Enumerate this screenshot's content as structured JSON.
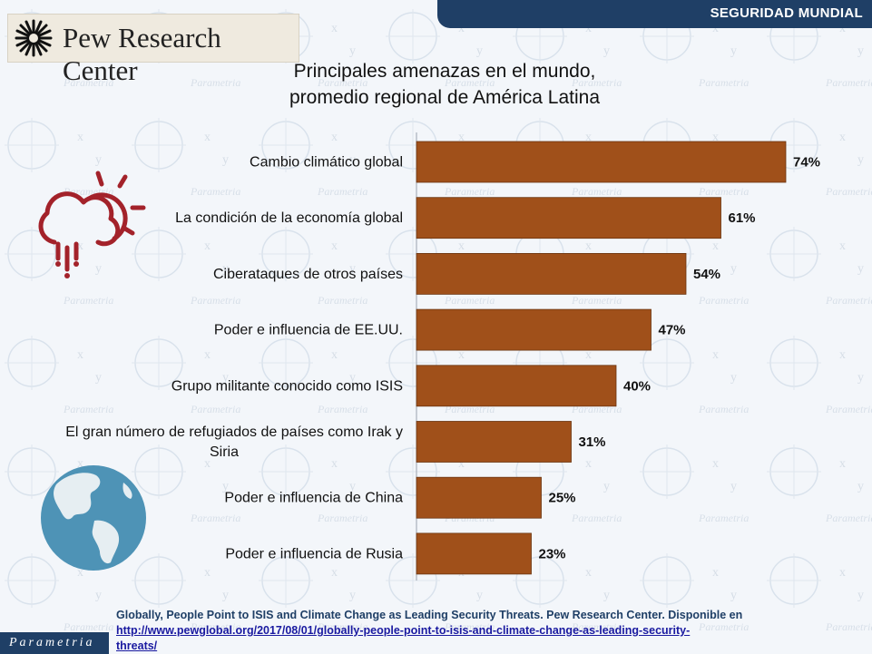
{
  "header": {
    "section_label": "SEGURIDAD MUNDIAL"
  },
  "logo": {
    "text": "Pew Research Center",
    "icon": "pew-sunburst-icon"
  },
  "watermark": {
    "text": "Parametria"
  },
  "chart_data": {
    "type": "bar",
    "orientation": "horizontal",
    "title": "Principales amenazas en el mundo,\npromedio regional de América Latina",
    "title_lines": [
      "Principales amenazas en el mundo,",
      "promedio regional de América Latina"
    ],
    "categories": [
      "Cambio climático global",
      "La condición de la economía global",
      "Ciberataques de otros países",
      "Poder e influencia de EE.UU.",
      "Grupo militante conocido como ISIS",
      "El gran número de refugiados de países como Irak y Siria",
      "Poder e influencia de China",
      "Poder e influencia de Rusia"
    ],
    "category_lines": [
      [
        "Cambio climático global"
      ],
      [
        "La condición de la economía global"
      ],
      [
        "Ciberataques de otros países"
      ],
      [
        "Poder e influencia de EE.UU."
      ],
      [
        "Grupo militante conocido como ISIS"
      ],
      [
        "El gran número de refugiados de países como Irak y",
        "Siria"
      ],
      [
        "Poder e influencia de China"
      ],
      [
        "Poder e influencia de Rusia"
      ]
    ],
    "values": [
      74,
      61,
      54,
      47,
      40,
      31,
      25,
      23
    ],
    "value_labels": [
      "74%",
      "61%",
      "54%",
      "47%",
      "40%",
      "31%",
      "25%",
      "23%"
    ],
    "unit": "%",
    "xlim": [
      0,
      100
    ],
    "bar_color": "#a0501a",
    "grid": false,
    "legend": "none"
  },
  "icons": {
    "weather": "cloud-sun-rain-icon",
    "globe": "globe-americas-icon"
  },
  "footer": {
    "brand": "Parametria",
    "source_text": "Globally, People Point to ISIS and Climate Change as Leading Security Threats. Pew Research Center. Disponible en",
    "source_url_line1": "http://www.pewglobal.org/2017/08/01/globally-people-point-to-isis-and-climate-change-as-leading-security-",
    "source_url_line2": "threats/"
  },
  "colors": {
    "navy": "#1f3f66",
    "icon_red": "#a3222a",
    "globe_blue": "#4e93b6"
  }
}
